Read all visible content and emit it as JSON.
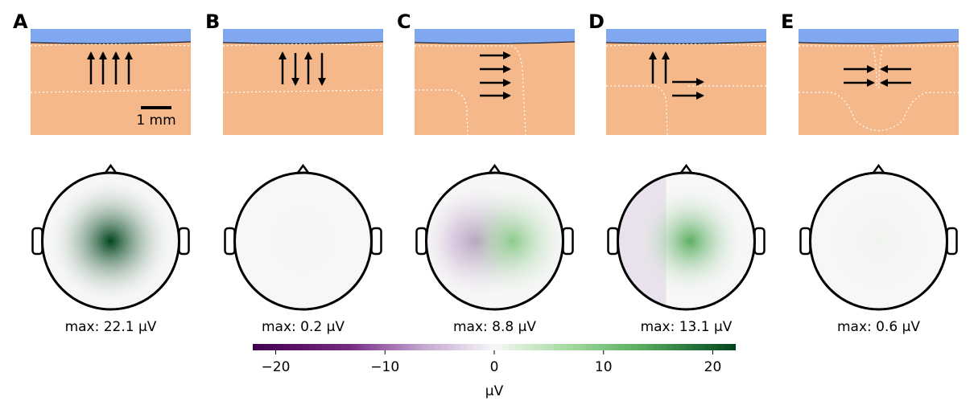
{
  "panels": [
    {
      "label": "A",
      "max": {
        "value": 22.1,
        "label": "max: 22.1 μV"
      }
    },
    {
      "label": "B",
      "max": {
        "value": 0.2,
        "label": "max: 0.2 μV"
      }
    },
    {
      "label": "C",
      "max": {
        "value": 8.8,
        "label": "max: 8.8 μV"
      }
    },
    {
      "label": "D",
      "max": {
        "value": 13.1,
        "label": "max: 13.1 μV"
      }
    },
    {
      "label": "E",
      "max": {
        "value": 0.6,
        "label": "max: 0.6 μV"
      }
    }
  ],
  "scale_bar": "1 mm",
  "colorbar": {
    "lim": [
      -22.1,
      22.1
    ],
    "ticks": [
      {
        "value": -20,
        "label": "−20"
      },
      {
        "value": -10,
        "label": "−10"
      },
      0,
      10,
      20
    ],
    "label": "μV"
  }
}
